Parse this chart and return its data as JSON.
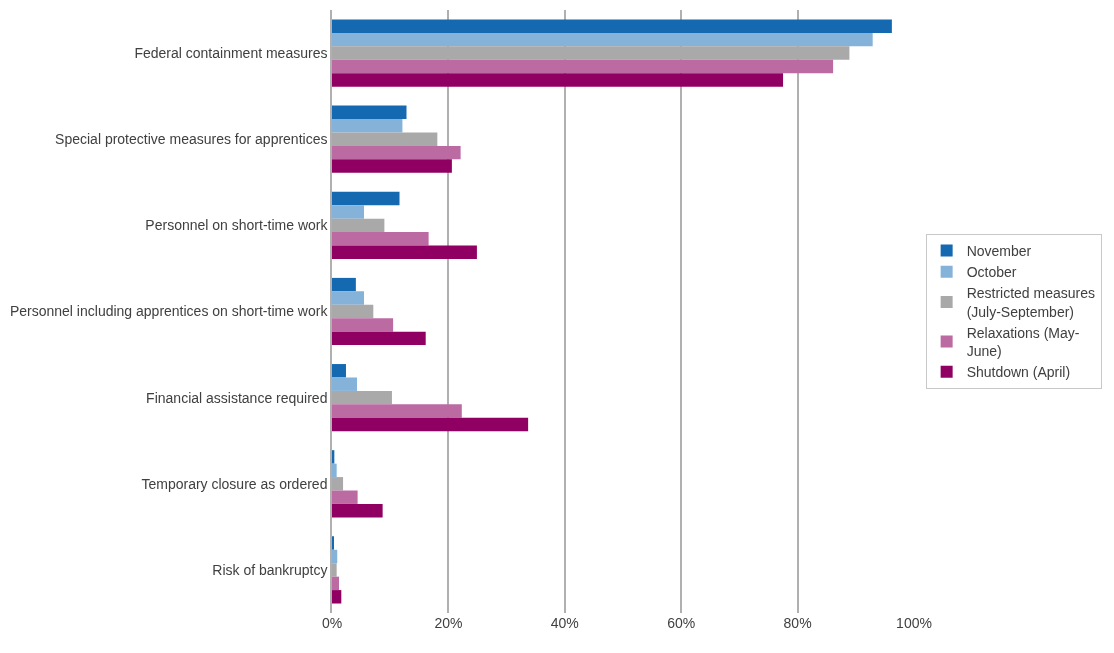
{
  "chart_data": {
    "type": "bar",
    "orientation": "horizontal",
    "categories": [
      "Federal containment measures",
      "Special protective measures for apprentices",
      "Personnel on short-time work",
      "Personnel including apprentices on short-time work",
      "Financial assistance required",
      "Temporary closure as ordered",
      "Risk of bankruptcy"
    ],
    "series": [
      {
        "name": "November",
        "color": "#1469b0",
        "values": [
          96.2,
          12.8,
          11.6,
          4.1,
          2.4,
          0.4,
          0.2
        ]
      },
      {
        "name": "October",
        "color": "#84b2d8",
        "values": [
          92.9,
          12.1,
          5.5,
          5.5,
          4.3,
          0.8,
          0.9
        ]
      },
      {
        "name": "Restricted measures (July-September)",
        "color": "#a9a9a9",
        "values": [
          88.9,
          18.1,
          9.0,
          7.1,
          10.3,
          1.9,
          0.8
        ]
      },
      {
        "name": "Relaxations (May-June)",
        "color": "#bb6aa2",
        "values": [
          86.1,
          22.1,
          16.6,
          10.5,
          22.3,
          4.4,
          1.2
        ]
      },
      {
        "name": "Shutdown (April)",
        "color": "#900063",
        "values": [
          77.5,
          20.6,
          24.9,
          16.1,
          33.7,
          8.7,
          1.6
        ]
      }
    ],
    "xlim": [
      0,
      100
    ],
    "xticks": [
      {
        "value": 0,
        "label": "0%"
      },
      {
        "value": 20,
        "label": "20%"
      },
      {
        "value": 40,
        "label": "40%"
      },
      {
        "value": 60,
        "label": "60%"
      },
      {
        "value": 80,
        "label": "80%"
      },
      {
        "value": 100,
        "label": "100%"
      }
    ],
    "grid": "x",
    "legend": "right"
  }
}
